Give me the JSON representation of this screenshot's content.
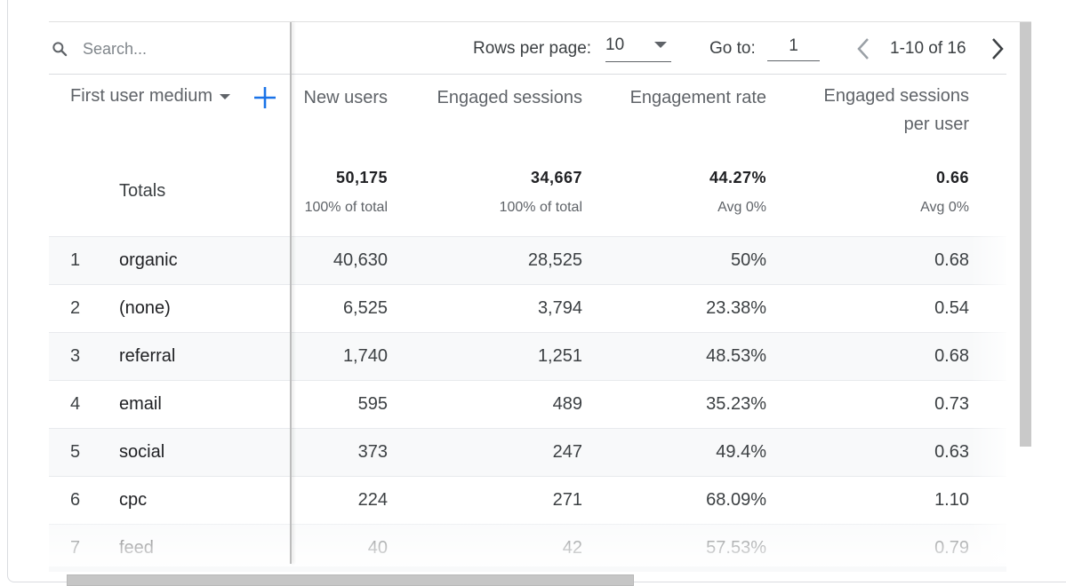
{
  "search": {
    "placeholder": "Search..."
  },
  "dimension": {
    "header": "First user medium"
  },
  "pagination": {
    "rows_per_page_label": "Rows per page:",
    "rows_per_page_value": "10",
    "goto_label": "Go to:",
    "goto_value": "1",
    "range": "1-10 of 16"
  },
  "columns": [
    {
      "label": "New users"
    },
    {
      "label": "Engaged sessions"
    },
    {
      "label": "Engagement rate"
    },
    {
      "label_line1": "Engaged sessions",
      "label_line2": "per user"
    }
  ],
  "totals": {
    "label": "Totals",
    "values": [
      "50,175",
      "34,667",
      "44.27%",
      "0.66"
    ],
    "subs": [
      "100% of total",
      "100% of total",
      "Avg 0%",
      "Avg 0%"
    ]
  },
  "rows": [
    {
      "index": "1",
      "name": "organic",
      "values": [
        "40,630",
        "28,525",
        "50%",
        "0.68"
      ]
    },
    {
      "index": "2",
      "name": "(none)",
      "values": [
        "6,525",
        "3,794",
        "23.38%",
        "0.54"
      ]
    },
    {
      "index": "3",
      "name": "referral",
      "values": [
        "1,740",
        "1,251",
        "48.53%",
        "0.68"
      ]
    },
    {
      "index": "4",
      "name": "email",
      "values": [
        "595",
        "489",
        "35.23%",
        "0.73"
      ]
    },
    {
      "index": "5",
      "name": "social",
      "values": [
        "373",
        "247",
        "49.4%",
        "0.63"
      ]
    },
    {
      "index": "6",
      "name": "cpc",
      "values": [
        "224",
        "271",
        "68.09%",
        "1.10"
      ]
    },
    {
      "index": "7",
      "name": "feed",
      "values": [
        "40",
        "42",
        "57.53%",
        "0.79"
      ]
    }
  ],
  "colors": {
    "accent": "#1a73e8",
    "text": "#3c4043",
    "muted": "#5f6368",
    "alt_row": "#f8f9fa"
  },
  "icons": {
    "search": "search-icon",
    "add": "add-dimension-icon",
    "prev": "chevron-left-icon",
    "next": "chevron-right-icon",
    "dropdown": "caret-down-icon"
  }
}
